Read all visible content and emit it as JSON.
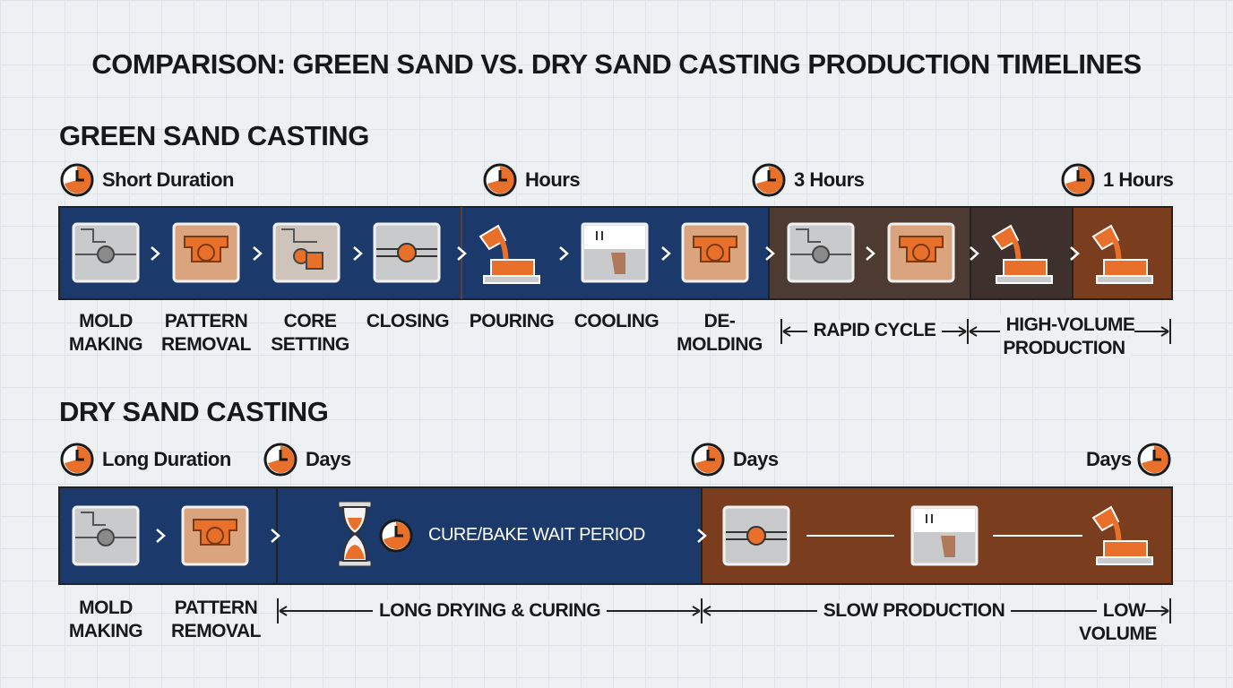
{
  "title": "COMPARISON: GREEN SAND VS. DRY SAND CASTING PRODUCTION TIMELINES",
  "green": {
    "heading": "GREEN SAND CASTING",
    "durations": [
      "Short Duration",
      "Hours",
      "3 Hours",
      "1 Hours"
    ],
    "steps": [
      "MOLD MAKING",
      "PATTERN REMOVAL",
      "CORE SETTING",
      "CLOSING",
      "POURING",
      "COOLING",
      "DE-MOLDING"
    ],
    "spans": [
      "RAPID CYCLE",
      "HIGH-VOLUME PRODUCTION"
    ]
  },
  "dry": {
    "heading": "DRY SAND CASTING",
    "durations": [
      "Long Duration",
      "Days",
      "Days",
      "Days"
    ],
    "steps": [
      "MOLD MAKING",
      "PATTERN REMOVAL"
    ],
    "wait": "CURE/BAKE WAIT PERIOD",
    "spans": [
      "LONG DRYING & CURING",
      "SLOW PRODUCTION",
      "LOW VOLUME"
    ]
  }
}
